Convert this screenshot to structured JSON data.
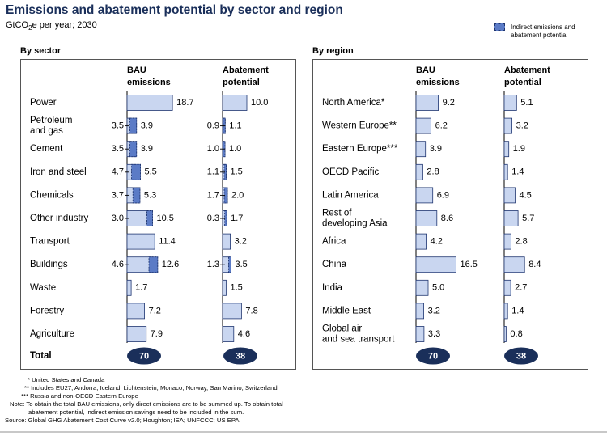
{
  "title": "Emissions and abatement potential by sector and region",
  "subtitle_prefix": "GtCO",
  "subtitle_sub": "2",
  "subtitle_suffix": "e per year; 2030",
  "legend": {
    "line1": "Indirect emissions and",
    "line2": "abatement potential",
    "colors": {
      "direct": "#c9d6f0",
      "indirect": "#5b7bc6",
      "edge": "#1f3570",
      "total_badge": "#1a2f5a"
    }
  },
  "sector_panel": {
    "heading": "By sector",
    "bau_header": [
      "BAU",
      "emissions"
    ],
    "abatement_header": [
      "Abatement",
      "potential"
    ],
    "total_label": "Total",
    "total_bau": "70",
    "total_abatement": "38"
  },
  "region_panel": {
    "heading": "By region",
    "bau_header": [
      "BAU",
      "emissions"
    ],
    "abatement_header": [
      "Abatement",
      "potential"
    ],
    "total_bau": "70",
    "total_abatement": "38"
  },
  "footnotes": [
    "* United States and Canada",
    "** Includes EU27, Andorra, Iceland, Lichtenstein, Monaco, Norway, San Marino, Switzerland",
    "*** Russia and non-OECD Eastern Europe",
    "Note: To obtain the total BAU emissions, only direct emissions are to be summed up. To obtain total",
    "abatement potential, indirect emission savings need to be included in the sum.",
    "Source: Global GHG Abatement Cost Curve v2.0; Houghton; IEA; UNFCCC; US EPA"
  ],
  "chart_data": [
    {
      "type": "bar",
      "title": "By sector",
      "categories": [
        "Power",
        "Petroleum and gas",
        "Cement",
        "Iron and steel",
        "Chemicals",
        "Other industry",
        "Transport",
        "Buildings",
        "Waste",
        "Forestry",
        "Agriculture"
      ],
      "category_lines": [
        [
          "Power"
        ],
        [
          "Petroleum",
          "and gas"
        ],
        [
          "Cement"
        ],
        [
          "Iron and steel"
        ],
        [
          "Chemicals"
        ],
        [
          "Other industry"
        ],
        [
          "Transport"
        ],
        [
          "Buildings"
        ],
        [
          "Waste"
        ],
        [
          "Forestry"
        ],
        [
          "Agriculture"
        ]
      ],
      "series": [
        {
          "name": "BAU emissions",
          "values": [
            18.7,
            3.9,
            3.9,
            5.5,
            5.3,
            10.5,
            11.4,
            12.6,
            1.7,
            7.2,
            7.9
          ],
          "indirect": [
            0,
            3.5,
            3.5,
            4.7,
            3.7,
            3.0,
            0,
            4.6,
            0,
            0,
            0
          ]
        },
        {
          "name": "Abatement potential",
          "values": [
            10.0,
            1.1,
            1.0,
            1.5,
            2.0,
            1.7,
            3.2,
            3.5,
            1.5,
            7.8,
            4.6
          ],
          "indirect": [
            0,
            0.9,
            1.0,
            1.1,
            1.7,
            0.3,
            0,
            1.3,
            0,
            0,
            0
          ]
        }
      ],
      "totals": {
        "BAU emissions": 70,
        "Abatement potential": 38
      },
      "legend": "top-right"
    },
    {
      "type": "bar",
      "title": "By region",
      "categories": [
        "North America*",
        "Western Europe**",
        "Eastern Europe***",
        "OECD Pacific",
        "Latin America",
        "Rest of developing Asia",
        "Africa",
        "China",
        "India",
        "Middle East",
        "Global air and sea transport"
      ],
      "category_lines": [
        [
          "North America*"
        ],
        [
          "Western Europe**"
        ],
        [
          "Eastern Europe***"
        ],
        [
          "OECD Pacific"
        ],
        [
          "Latin America"
        ],
        [
          "Rest of",
          "developing Asia"
        ],
        [
          "Africa"
        ],
        [
          "China"
        ],
        [
          "India"
        ],
        [
          "Middle East"
        ],
        [
          "Global air",
          "and sea transport"
        ]
      ],
      "series": [
        {
          "name": "BAU emissions",
          "values": [
            9.2,
            6.2,
            3.9,
            2.8,
            6.9,
            8.6,
            4.2,
            16.5,
            5.0,
            3.2,
            3.3
          ]
        },
        {
          "name": "Abatement potential",
          "values": [
            5.1,
            3.2,
            1.9,
            1.4,
            4.5,
            5.7,
            2.8,
            8.4,
            2.7,
            1.4,
            0.8
          ]
        }
      ],
      "totals": {
        "BAU emissions": 70,
        "Abatement potential": 38
      }
    }
  ]
}
